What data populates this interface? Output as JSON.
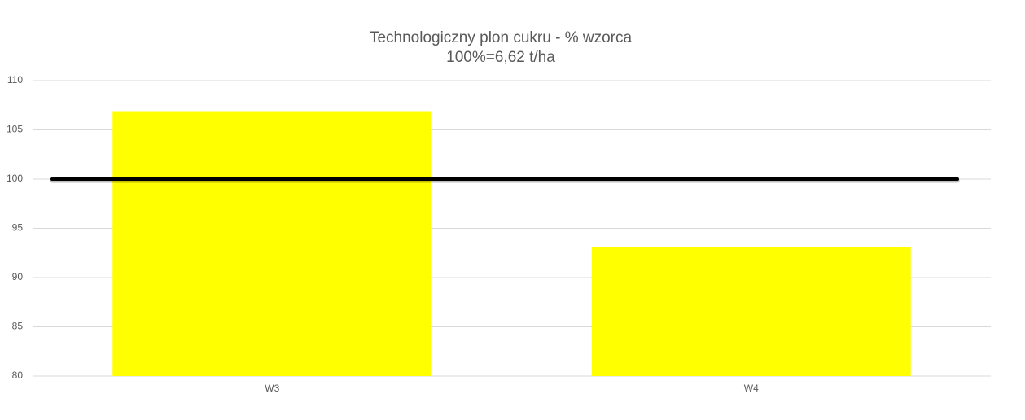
{
  "chart_data": {
    "type": "bar",
    "title": "Technologiczny plon cukru - % wzorca",
    "subtitle": "100%=6,62 t/ha",
    "categories": [
      "W3",
      "W4"
    ],
    "values": [
      106.9,
      93.1
    ],
    "color": "#ffff00",
    "reference_line": {
      "value": 100,
      "color": "#000000"
    },
    "ylim": [
      80,
      110
    ],
    "yticks": [
      80,
      85,
      90,
      95,
      100,
      105,
      110
    ],
    "grid": true
  }
}
